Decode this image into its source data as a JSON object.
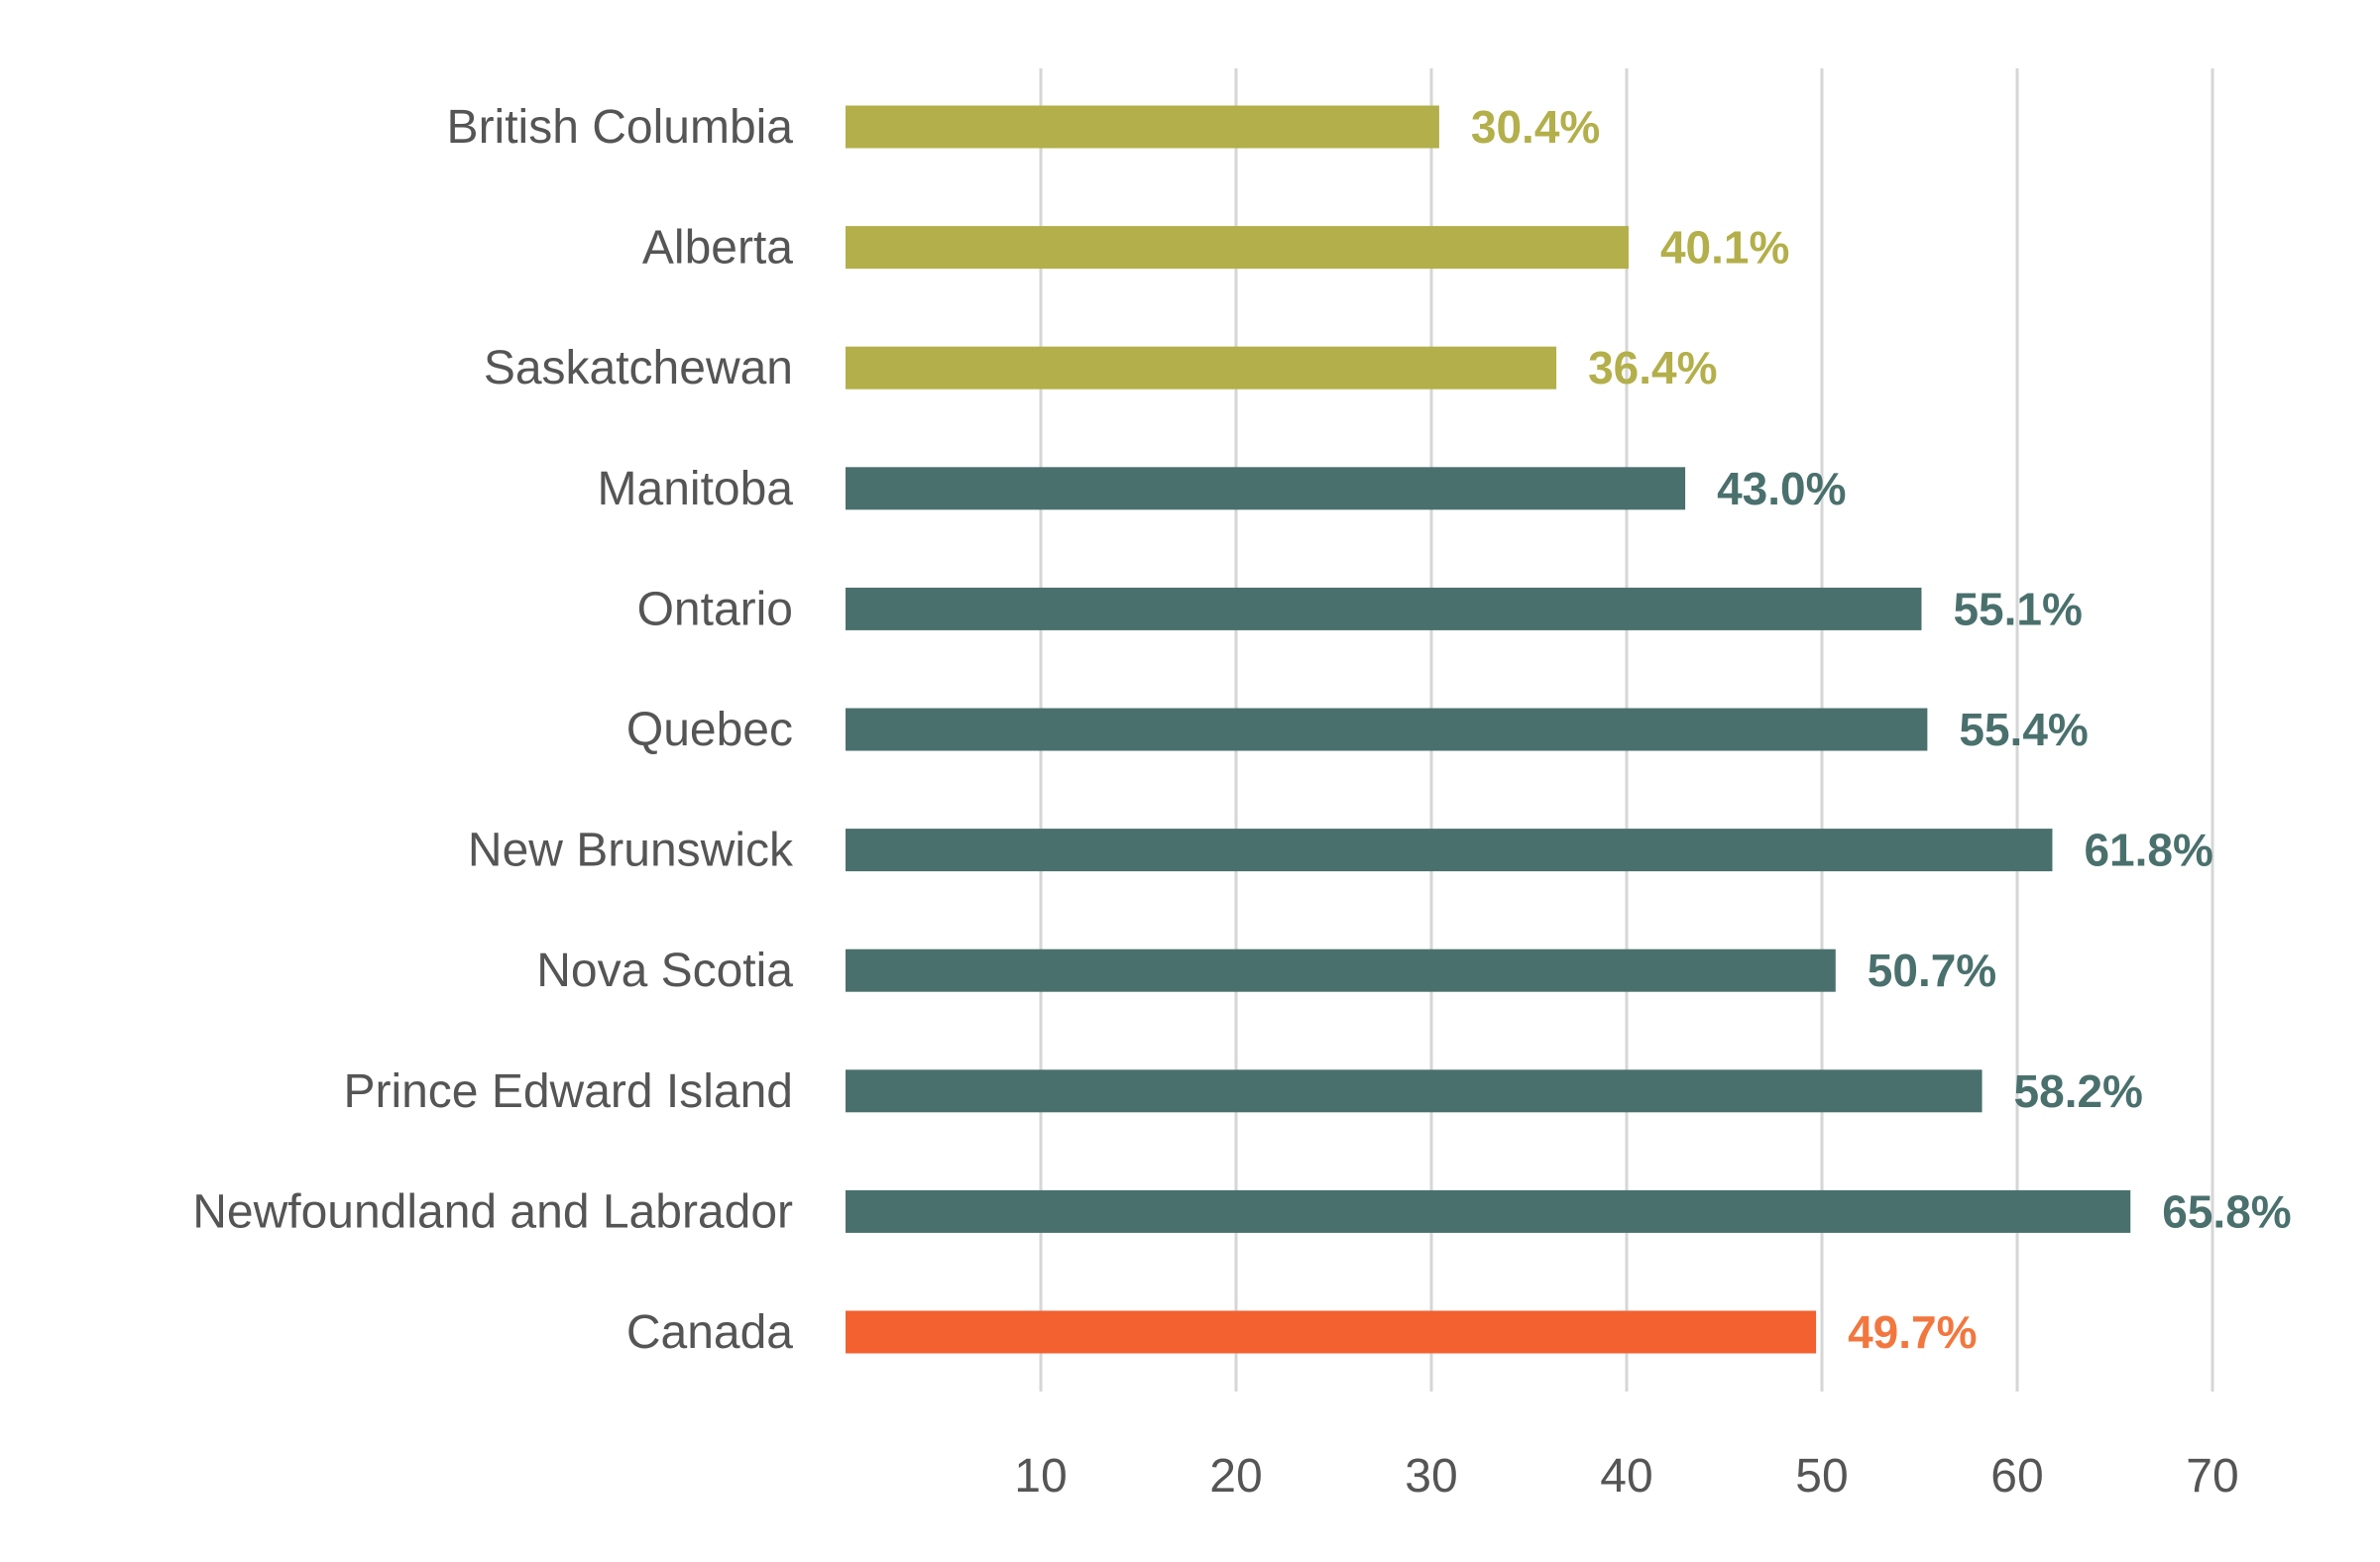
{
  "chart_data": {
    "type": "bar",
    "orientation": "horizontal",
    "title": "",
    "xlabel": "",
    "ylabel": "",
    "xlim": [
      0,
      70
    ],
    "x_ticks": [
      10,
      20,
      30,
      40,
      50,
      60,
      70
    ],
    "grid": true,
    "categories": [
      "British Columbia",
      "Alberta",
      "Saskatchewan",
      "Manitoba",
      "Ontario",
      "Quebec",
      "New Brunswick",
      "Nova Scotia",
      "Prince Edward Island",
      "Newfoundland and Labrador",
      "Canada"
    ],
    "values": [
      30.4,
      40.1,
      36.4,
      43.0,
      55.1,
      55.4,
      61.8,
      50.7,
      58.2,
      65.8,
      49.7
    ],
    "data_labels": [
      "30.4%",
      "40.1%",
      "36.4%",
      "43.0%",
      "55.1%",
      "55.4%",
      "61.8%",
      "50.7%",
      "58.2%",
      "65.8%",
      "49.7%"
    ],
    "groups": [
      "west",
      "west",
      "west",
      "east",
      "east",
      "east",
      "east",
      "east",
      "east",
      "east",
      "national"
    ],
    "colors": {
      "west": "#b3af4a",
      "east": "#4a706d",
      "national": "#f2612f"
    },
    "label_colors": {
      "west": "#b3af4a",
      "east": "#4a706d",
      "national": "#f2773f"
    }
  }
}
